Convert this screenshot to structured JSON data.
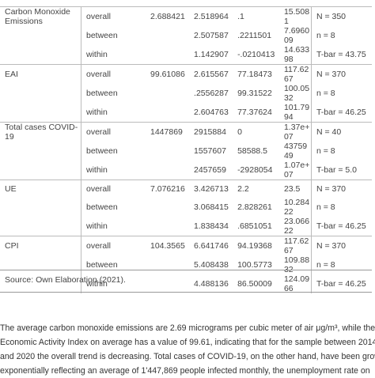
{
  "table": {
    "groups": [
      {
        "variable": "Carbon Monoxide Emissions",
        "rows": [
          {
            "stat": "overall",
            "mean": "2.688421",
            "sd": "2.518964",
            "min": ".1",
            "max": "15.5081",
            "obs": "N = 350"
          },
          {
            "stat": "between",
            "sd": "2.507587",
            "min": ".2211501",
            "max": "7.696009",
            "obs": "n = 8"
          },
          {
            "stat": "within",
            "sd": "1.142907",
            "min": "-.0210413",
            "max": "14.63398",
            "obs": "T-bar = 43.75"
          }
        ]
      },
      {
        "variable": "EAI",
        "rows": [
          {
            "stat": "overall",
            "mean": "99.61086",
            "sd": "2.615567",
            "min": "77.18473",
            "max": "117.6267",
            "obs": "N = 370"
          },
          {
            "stat": "between",
            "sd": ".2556287",
            "min": "99.31522",
            "max": "100.0532",
            "obs": "n = 8"
          },
          {
            "stat": "within",
            "sd": "2.604763",
            "min": "77.37624",
            "max": "101.7994",
            "obs": "T-bar = 46.25"
          }
        ]
      },
      {
        "variable": "Total cases COVID-19",
        "rows": [
          {
            "stat": "overall",
            "mean": "1447869",
            "sd": "2915884",
            "min": "0",
            "max": "1.37e+07",
            "obs": "N = 40"
          },
          {
            "stat": "between",
            "sd": "1557607",
            "min": "58588.5",
            "max": "4375949",
            "obs": "n = 8"
          },
          {
            "stat": "within",
            "sd": "2457659",
            "min": "-2928054",
            "max": "1.07e+07",
            "obs": "T-bar = 5.0"
          }
        ]
      },
      {
        "variable": "UE",
        "rows": [
          {
            "stat": "overall",
            "mean": "7.076216",
            "sd": "3.426713",
            "min": "2.2",
            "max": "23.5",
            "obs": "N = 370"
          },
          {
            "stat": "between",
            "sd": "3.068415",
            "min": "2.828261",
            "max": "10.28422",
            "obs": "n = 8"
          },
          {
            "stat": "within",
            "sd": "1.838434",
            "min": ".6851051",
            "max": "23.06622",
            "obs": "T-bar = 46.25"
          }
        ]
      },
      {
        "variable": "CPI",
        "rows": [
          {
            "stat": "overall",
            "mean": "104.3565",
            "sd": "6.641746",
            "min": "94.19368",
            "max": "117.6267",
            "obs": "N = 370"
          },
          {
            "stat": "between",
            "sd": "5.408438",
            "min": "100.5773",
            "max": "109.8832",
            "obs": "n = 8"
          },
          {
            "stat": "within",
            "sd": "4.488136",
            "min": "86.50009",
            "max": "124.0966",
            "obs": "T-bar = 46.25"
          }
        ]
      }
    ],
    "source": "Source: Own Elaboration (2021)."
  },
  "paragraph": [
    "The average carbon monoxide emissions are 2.69 micrograms per cubic meter of air μg/m³, while the",
    "Economic Activity Index on average has a value of 99.61, indicating that for the sample between 2014",
    "and 2020 the overall trend is decreasing. Total cases of COVID-19, on the other hand, have been growing",
    "exponentially reflecting an average of 1'447,869 people infected monthly, the unemployment rate on"
  ]
}
